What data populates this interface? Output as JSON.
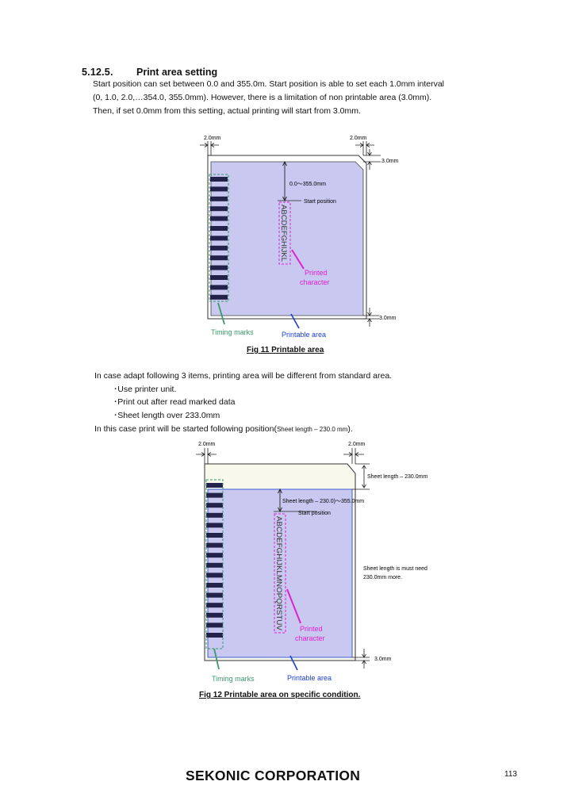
{
  "section": {
    "number": "5.12.5.",
    "title": "Print area setting",
    "paragraph_lines": [
      "Start position can set between 0.0 and 355.0m. Start position is able to set each 1.0mm interval",
      "(0, 1.0, 2.0,…354.0, 355.0mm). However, there is a limitation of non printable area   (3.0mm).",
      "Then, if set 0.0mm from this setting, actual printing will start from 3.0mm."
    ]
  },
  "fig11": {
    "dim_left": "2.0mm",
    "dim_right": "2.0mm",
    "dim_top": "3.0mm",
    "dim_bottom": "3.0mm",
    "range_label": "0.0〜355.0mm",
    "start_label": "Start position",
    "chars": "ABCDEFGHIJKL",
    "printed_l1": "Printed",
    "printed_l2": "character",
    "timing_label": "Timing marks",
    "printable_label": "Printable area",
    "caption": "Fig 11 Printable area"
  },
  "conditions": {
    "intro": "In case adapt following 3 items, printing area will be different from standard area.",
    "items": [
      "･Use printer unit.",
      "･Print out after read marked data",
      "･Sheet length over 233.0mm"
    ],
    "outro_main": "In this case print will be started following position(",
    "outro_small": "Sheet length – 230.0 mm",
    "outro_end": ")."
  },
  "fig12": {
    "dim_left": "2.0mm",
    "dim_right": "2.0mm",
    "sheet_length_label": "Sheet length – 230.0mm",
    "range_label": "Sheet length – 230.0)〜355.0mm",
    "start_label": "Start position",
    "chars": "ABCDEFGHIJKLMNOPQRSTUV",
    "note_l1": "Sheet length is must need",
    "note_l2": "230.0mm more.",
    "dim_bottom": "3.0mm",
    "printed_l1": "Printed",
    "printed_l2": "character",
    "timing_label": "Timing marks",
    "printable_label": "Printable area",
    "caption": "Fig 12 Printable area on specific condition."
  },
  "footer": {
    "brand": "SEKONIC CORPORATION",
    "page": "113"
  },
  "colors": {
    "printable_fill": "#c8c8f0",
    "blank_fill": "#f8f8ec",
    "timing_mark": "#22224a",
    "timing_box": "#3a9a6a",
    "magenta": "#e020d0",
    "arrow_blue": "#1a3fd0"
  }
}
